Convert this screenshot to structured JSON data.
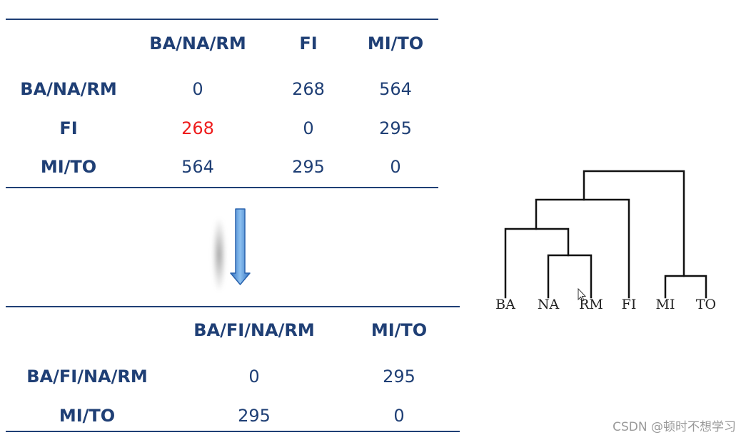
{
  "table1": {
    "headers": [
      "BA/NA/RM",
      "FI",
      "MI/TO"
    ],
    "rows": [
      {
        "label": "BA/NA/RM",
        "cells": [
          "0",
          "268",
          "564"
        ]
      },
      {
        "label": "FI",
        "cells": [
          "268",
          "0",
          "295"
        ]
      },
      {
        "label": "MI/TO",
        "cells": [
          "564",
          "295",
          "0"
        ]
      }
    ],
    "highlight_color": "#ee1c1c"
  },
  "table2": {
    "headers": [
      "BA/FI/NA/RM",
      "MI/TO"
    ],
    "rows": [
      {
        "label": "BA/FI/NA/RM",
        "cells": [
          "0",
          "295"
        ]
      },
      {
        "label": "MI/TO",
        "cells": [
          "295",
          "0"
        ]
      }
    ]
  },
  "dendrogram": {
    "leaves": [
      "BA",
      "NA",
      "RM",
      "FI",
      "MI",
      "TO"
    ]
  },
  "arrow": {
    "direction": "down",
    "color": "#5b9bd5"
  },
  "colors": {
    "text": "#1f3f75",
    "rule": "#1f3f75",
    "highlight": "#ee1c1c"
  },
  "watermark": "CSDN @顿时不想学习"
}
